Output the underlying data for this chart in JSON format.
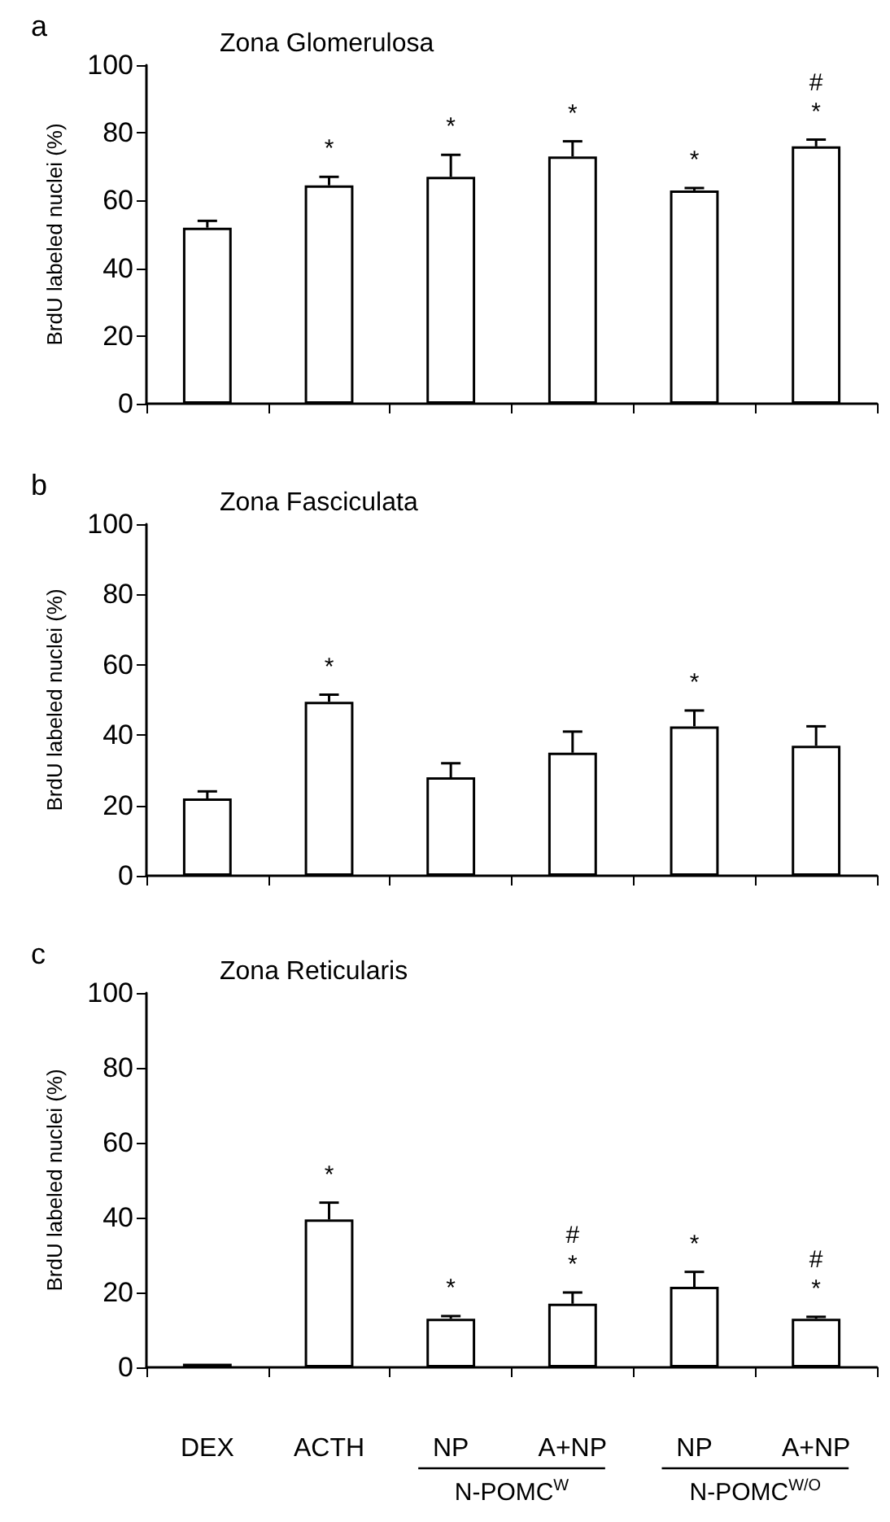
{
  "chart_data": [
    {
      "type": "bar",
      "subtitle": "a",
      "title": "Zona Glomerulosa",
      "ylabel": "BrdU labeled nuclei (%)",
      "categories": [
        null,
        null,
        null,
        null,
        null,
        null
      ],
      "color": "#ffffff",
      "ylim": [
        0,
        100
      ],
      "yticks": [
        0,
        20,
        40,
        60,
        80,
        100
      ],
      "values": [
        52,
        64.5,
        67,
        73,
        63,
        76
      ],
      "errors": [
        2,
        2.5,
        6.5,
        4.5,
        0.7,
        2
      ],
      "value_labels": [
        null,
        "*",
        "*",
        "*",
        "*",
        "#\n*"
      ]
    },
    {
      "type": "bar",
      "subtitle": "b",
      "title": "Zona Fasciculata",
      "ylabel": "BrdU labeled nuclei (%)",
      "categories": [
        null,
        null,
        null,
        null,
        null,
        null
      ],
      "color": "#ffffff",
      "ylim": [
        0,
        100
      ],
      "yticks": [
        0,
        20,
        40,
        60,
        80,
        100
      ],
      "values": [
        22,
        49.5,
        28,
        35,
        42.5,
        37
      ],
      "errors": [
        2,
        2,
        4,
        6,
        4.5,
        5.5
      ],
      "value_labels": [
        null,
        "*",
        null,
        null,
        "*",
        null
      ]
    },
    {
      "type": "bar",
      "subtitle": "c",
      "title": "Zona Reticularis",
      "ylabel": "BrdU labeled nuclei (%)",
      "categories": [
        "DEX",
        "ACTH",
        "NP",
        "A+NP",
        "NP",
        "A+NP"
      ],
      "color": "#ffffff",
      "ylim": [
        0,
        100
      ],
      "yticks": [
        0,
        20,
        40,
        60,
        80,
        100
      ],
      "values": [
        1,
        39.5,
        13,
        17,
        21.5,
        13
      ],
      "errors": [
        null,
        4.5,
        0.7,
        3,
        4,
        0.5
      ],
      "value_labels": [
        null,
        "*",
        "*",
        "#\n*",
        "*",
        "#\n*"
      ],
      "annotations": [
        "N-POMC$^{W}$",
        "N-POMC$^{W/O}$"
      ]
    }
  ]
}
